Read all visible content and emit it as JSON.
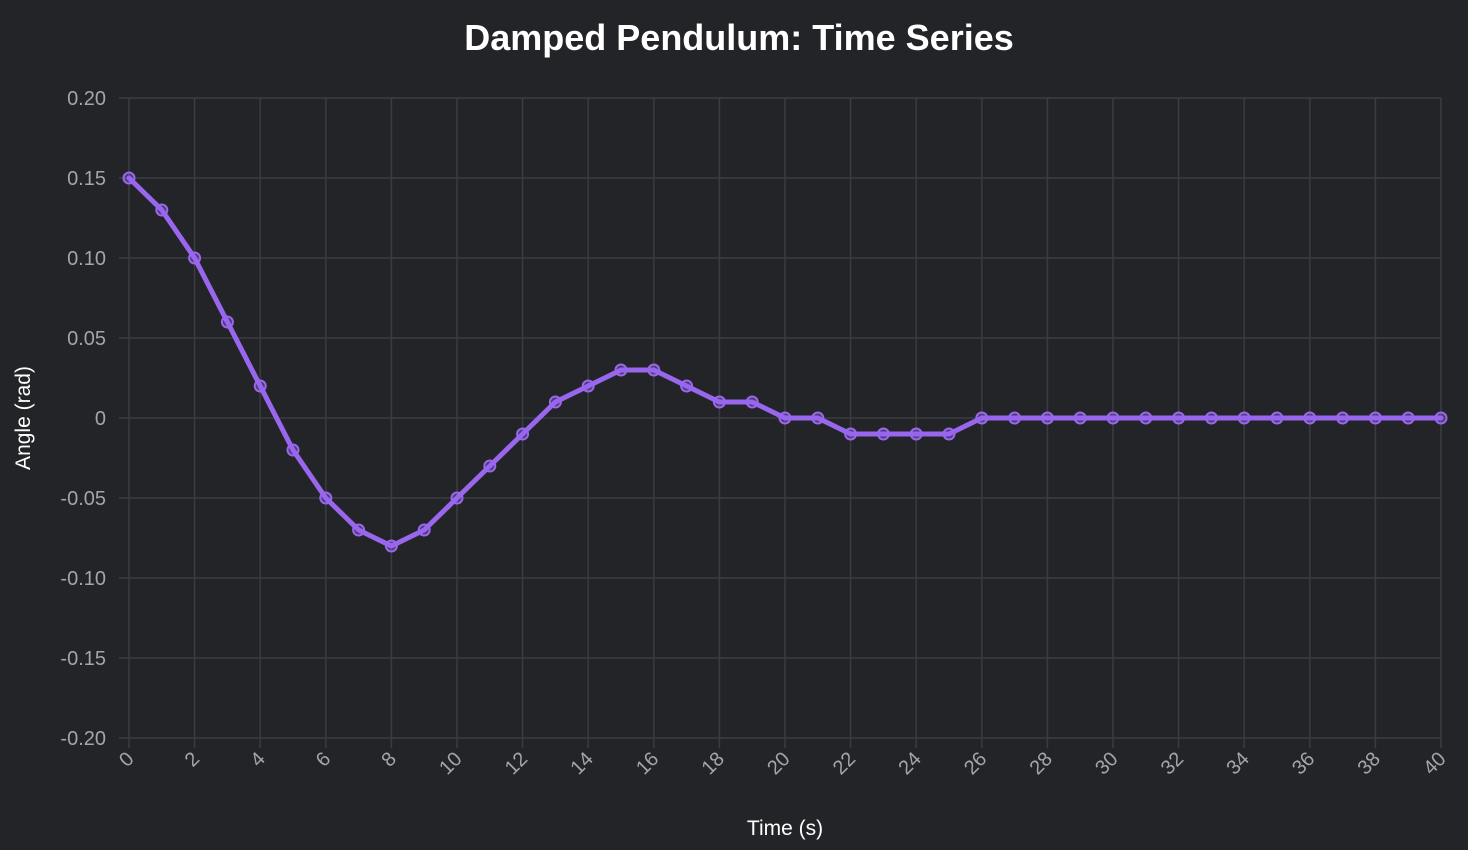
{
  "chart_data": {
    "type": "line",
    "title": "Damped Pendulum: Time Series",
    "xlabel": "Time (s)",
    "ylabel": "Angle (rad)",
    "xlim": [
      0,
      40
    ],
    "ylim": [
      -0.2,
      0.2
    ],
    "x_ticks": [
      "0",
      "2",
      "4",
      "6",
      "8",
      "10",
      "12",
      "14",
      "16",
      "18",
      "20",
      "22",
      "24",
      "26",
      "28",
      "30",
      "32",
      "34",
      "36",
      "38",
      "40"
    ],
    "y_ticks": [
      "0.20",
      "0.15",
      "0.10",
      "0.05",
      "0",
      "-0.05",
      "-0.10",
      "-0.15",
      "-0.20"
    ],
    "grid": true,
    "legend": "none",
    "colors": {
      "background": "#232428",
      "line": "#9966ee",
      "grid": "#3a3c41"
    },
    "series": [
      {
        "x": [
          0,
          1,
          2,
          3,
          4,
          5,
          6,
          7,
          8,
          9,
          10,
          11,
          12,
          13,
          14,
          15,
          16,
          17,
          18,
          19,
          20,
          21,
          22,
          23,
          24,
          25,
          26,
          27,
          28,
          29,
          30,
          31,
          32,
          33,
          34,
          35,
          36,
          37,
          38,
          39,
          40
        ],
        "values": [
          0.15,
          0.13,
          0.1,
          0.06,
          0.02,
          -0.02,
          -0.05,
          -0.07,
          -0.08,
          -0.07,
          -0.05,
          -0.03,
          -0.01,
          0.01,
          0.02,
          0.03,
          0.03,
          0.02,
          0.01,
          0.01,
          0,
          0,
          -0.01,
          -0.01,
          -0.01,
          -0.01,
          0,
          0,
          0,
          0,
          0,
          0,
          0,
          0,
          0,
          0,
          0,
          0,
          0,
          0,
          0
        ]
      }
    ]
  }
}
